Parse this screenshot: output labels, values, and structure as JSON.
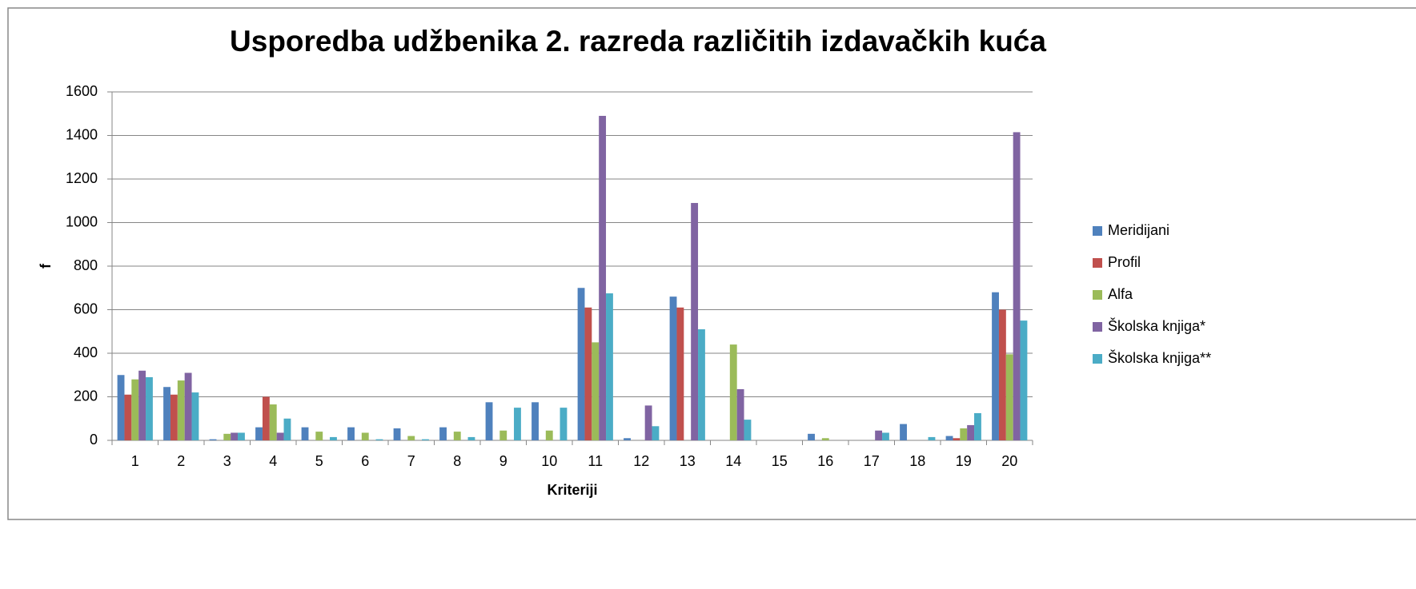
{
  "chart_data": {
    "type": "bar",
    "title": "Usporedba udžbenika 2. razreda različitih izdavačkih kuća",
    "x_label": "Kriteriji",
    "y_label": "f",
    "categories": [
      "1",
      "2",
      "3",
      "4",
      "5",
      "6",
      "7",
      "8",
      "9",
      "10",
      "11",
      "12",
      "13",
      "14",
      "15",
      "16",
      "17",
      "18",
      "19",
      "20"
    ],
    "series": [
      {
        "name": "Meridijani",
        "color": "#4f81bd",
        "values": [
          300,
          245,
          5,
          60,
          60,
          60,
          55,
          60,
          175,
          175,
          700,
          10,
          660,
          0,
          0,
          30,
          0,
          75,
          20,
          680
        ]
      },
      {
        "name": "Profil",
        "color": "#c0504d",
        "values": [
          210,
          210,
          0,
          200,
          0,
          0,
          0,
          0,
          0,
          0,
          610,
          0,
          610,
          0,
          0,
          0,
          0,
          0,
          10,
          600
        ]
      },
      {
        "name": "Alfa",
        "color": "#9bbb59",
        "values": [
          280,
          275,
          30,
          165,
          40,
          35,
          20,
          40,
          45,
          45,
          450,
          0,
          0,
          440,
          0,
          10,
          0,
          0,
          55,
          395
        ]
      },
      {
        "name": "Školska knjiga*",
        "color": "#8064a2",
        "values": [
          320,
          310,
          35,
          35,
          0,
          0,
          0,
          0,
          0,
          0,
          1490,
          160,
          1090,
          235,
          0,
          0,
          45,
          0,
          70,
          1415
        ]
      },
      {
        "name": "Školska knjiga**",
        "color": "#4bacc6",
        "values": [
          290,
          220,
          35,
          100,
          15,
          5,
          5,
          15,
          150,
          150,
          675,
          65,
          510,
          95,
          0,
          0,
          35,
          15,
          125,
          550
        ]
      }
    ],
    "ylim": [
      0,
      1600
    ],
    "yticks": [
      0,
      200,
      400,
      600,
      800,
      1000,
      1200,
      1400,
      1600
    ],
    "grid": true,
    "legend": "right"
  }
}
